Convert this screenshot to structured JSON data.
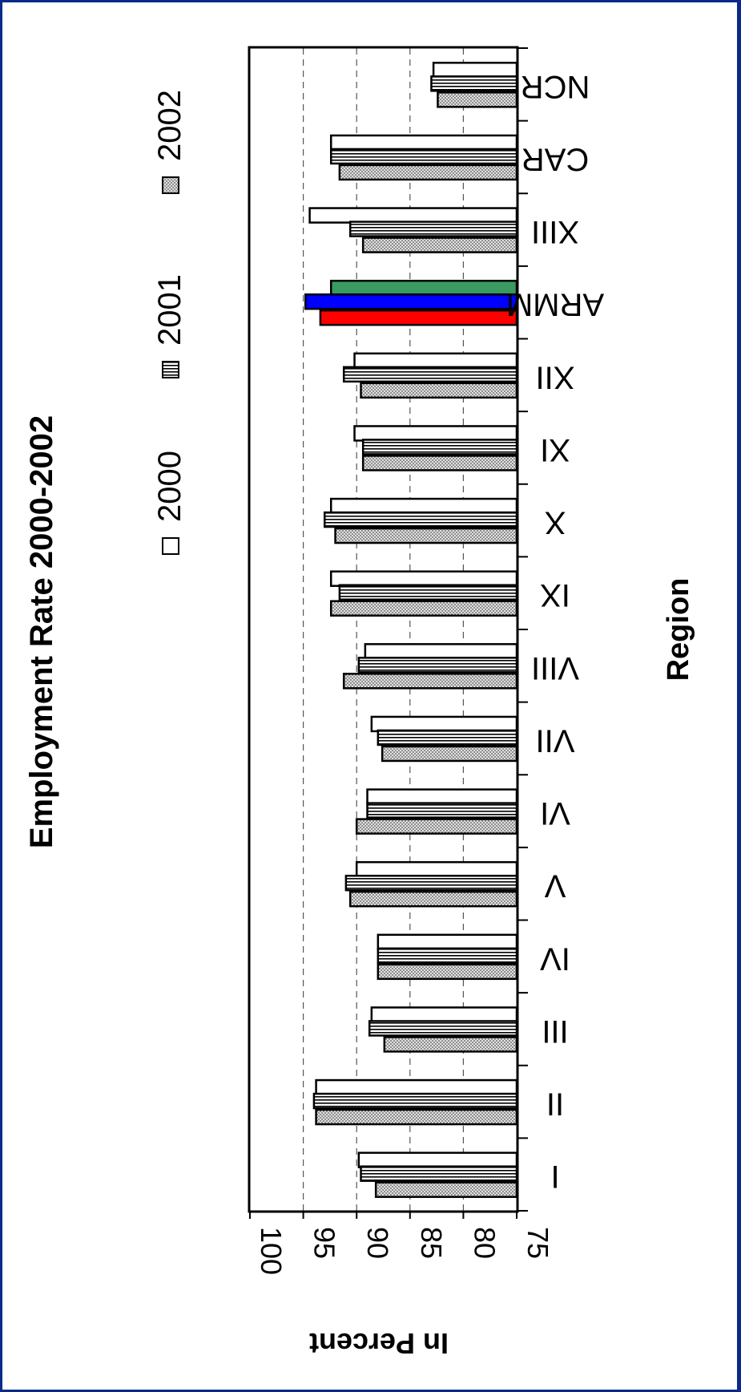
{
  "chart_data": {
    "type": "bar",
    "orientation": "rotated 90 degrees clockwise",
    "title": "Employment Rate 2000-2002",
    "xlabel": "Region",
    "ylabel": "In Percent",
    "ylim": [
      75,
      100
    ],
    "yticks": [
      "100",
      "95",
      "90",
      "85",
      "80",
      "75"
    ],
    "grid": true,
    "legend_position": "top",
    "categories": [
      "I",
      "II",
      "III",
      "IV",
      "V",
      "VI",
      "VII",
      "VIII",
      "IX",
      "X",
      "XI",
      "XII",
      "ARMM",
      "XIII",
      "CAR",
      "NCR"
    ],
    "series": [
      {
        "name": "2000",
        "values": [
          89.8,
          93.8,
          88.6,
          88.0,
          90.0,
          89.0,
          88.6,
          89.2,
          92.4,
          92.4,
          90.2,
          90.2,
          92.4,
          94.4,
          92.4,
          82.8
        ]
      },
      {
        "name": "2001",
        "values": [
          89.6,
          94.0,
          88.8,
          88.0,
          91.0,
          89.0,
          88.0,
          89.8,
          91.6,
          93.0,
          89.4,
          91.2,
          94.8,
          90.6,
          92.4,
          83.0
        ]
      },
      {
        "name": "2002",
        "values": [
          88.2,
          93.8,
          87.4,
          88.0,
          90.6,
          90.0,
          87.6,
          91.2,
          92.4,
          92.0,
          89.4,
          89.6,
          93.4,
          89.4,
          91.6,
          82.4
        ]
      }
    ],
    "highlight": {
      "category": "ARMM",
      "colors": [
        "#3a9a60",
        "#0000ff",
        "#ff0000"
      ]
    },
    "series_fills": [
      "white",
      "vertical-lines",
      "dotted-gray"
    ]
  }
}
